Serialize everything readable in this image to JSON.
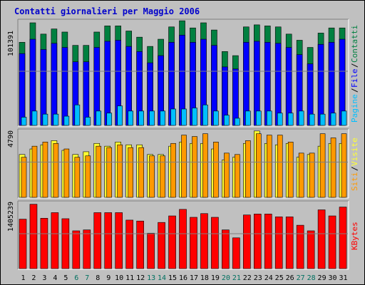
{
  "title": "Contatti giornalieri per Maggio 2006",
  "colors": {
    "title": "#0000cc",
    "background": "#c0c0c0",
    "plot_bg": "#c0c0c0",
    "gridline": "#808080",
    "pages": "#00bfff",
    "files": "#0000ff",
    "hits": "#008040",
    "sites": "#ff9900",
    "visits": "#ffff33",
    "kbytes": "#ff0000",
    "weekend_day": "#007060",
    "weekday": "#000000"
  },
  "chart_data": [
    {
      "type": "bar",
      "name": "top",
      "tick_label": "101391",
      "legend": [
        "Pagine",
        "File",
        "Contatti"
      ],
      "legend_colors": [
        "#00bfff",
        "#0000ff",
        "#008040"
      ],
      "scale_max": 101391,
      "categories": [
        "1",
        "2",
        "3",
        "4",
        "5",
        "6",
        "7",
        "8",
        "9",
        "10",
        "11",
        "12",
        "13",
        "14",
        "15",
        "16",
        "17",
        "18",
        "19",
        "20",
        "21",
        "22",
        "23",
        "24",
        "25",
        "26",
        "27",
        "28",
        "29",
        "30",
        "31"
      ],
      "series": [
        {
          "name": "Contatti",
          "values": [
            81000,
            100000,
            89000,
            94000,
            91000,
            78000,
            78000,
            91000,
            97000,
            97000,
            92000,
            86000,
            77000,
            84000,
            96000,
            102000,
            95000,
            100000,
            93000,
            72000,
            68000,
            96000,
            98000,
            97000,
            96000,
            89000,
            83000,
            76000,
            90000,
            95000,
            95000
          ]
        },
        {
          "name": "File",
          "values": [
            70000,
            84000,
            74000,
            80000,
            76000,
            62000,
            62000,
            76000,
            82000,
            83000,
            77000,
            72000,
            61000,
            68000,
            81000,
            88000,
            81000,
            84000,
            78000,
            57000,
            55000,
            81000,
            82000,
            81000,
            80000,
            76000,
            69000,
            60000,
            79000,
            81000,
            84000
          ]
        },
        {
          "name": "Pagine",
          "values": [
            8000,
            14000,
            11000,
            11000,
            9000,
            20000,
            8000,
            14000,
            12000,
            19000,
            14000,
            14000,
            14000,
            14000,
            16000,
            16000,
            17000,
            20000,
            14000,
            10000,
            7000,
            14000,
            14000,
            14000,
            12000,
            12000,
            14000,
            11000,
            11000,
            12000,
            14000
          ]
        }
      ]
    },
    {
      "type": "bar",
      "name": "middle",
      "tick_label": "4790",
      "legend": [
        "Siti",
        "Visite"
      ],
      "legend_colors": [
        "#ff9900",
        "#ffff33"
      ],
      "scale_max": 4790,
      "categories": [
        "1",
        "2",
        "3",
        "4",
        "5",
        "6",
        "7",
        "8",
        "9",
        "10",
        "11",
        "12",
        "13",
        "14",
        "15",
        "16",
        "17",
        "18",
        "19",
        "20",
        "21",
        "22",
        "23",
        "24",
        "25",
        "26",
        "27",
        "28",
        "29",
        "30",
        "31"
      ],
      "series": [
        {
          "name": "Visite",
          "values": [
            3100,
            3500,
            3800,
            4100,
            3400,
            3100,
            3300,
            3900,
            3700,
            4000,
            3800,
            3800,
            3100,
            3100,
            3700,
            4000,
            3900,
            3900,
            3500,
            2700,
            2900,
            3900,
            4800,
            3900,
            3800,
            3900,
            2900,
            3100,
            3700,
            3900,
            3900
          ]
        },
        {
          "name": "Siti",
          "values": [
            2900,
            3700,
            4000,
            3900,
            3500,
            2900,
            3000,
            3700,
            3600,
            3800,
            3600,
            3600,
            3000,
            3000,
            3900,
            4500,
            4400,
            4600,
            4000,
            3200,
            3100,
            4100,
            4600,
            4500,
            4500,
            4000,
            3200,
            3200,
            4600,
            4300,
            4600
          ]
        }
      ]
    },
    {
      "type": "bar",
      "name": "bottom",
      "tick_label": "1405239",
      "legend": [
        "KBytes"
      ],
      "legend_colors": [
        "#ff0000"
      ],
      "scale_max": 1405239,
      "categories": [
        "1",
        "2",
        "3",
        "4",
        "5",
        "6",
        "7",
        "8",
        "9",
        "10",
        "11",
        "12",
        "13",
        "14",
        "15",
        "16",
        "17",
        "18",
        "19",
        "20",
        "21",
        "22",
        "23",
        "24",
        "25",
        "26",
        "27",
        "28",
        "29",
        "30",
        "31"
      ],
      "series": [
        {
          "name": "KBytes",
          "values": [
            1060000,
            1380000,
            1080000,
            1200000,
            1070000,
            810000,
            830000,
            1200000,
            1200000,
            1200000,
            1040000,
            1020000,
            760000,
            990000,
            1130000,
            1270000,
            1100000,
            1180000,
            1100000,
            830000,
            660000,
            1150000,
            1170000,
            1170000,
            1110000,
            1110000,
            930000,
            810000,
            1260000,
            1130000,
            1320000
          ]
        }
      ]
    }
  ],
  "weekend_days": [
    "6",
    "7",
    "13",
    "14",
    "20",
    "21",
    "27",
    "28"
  ]
}
